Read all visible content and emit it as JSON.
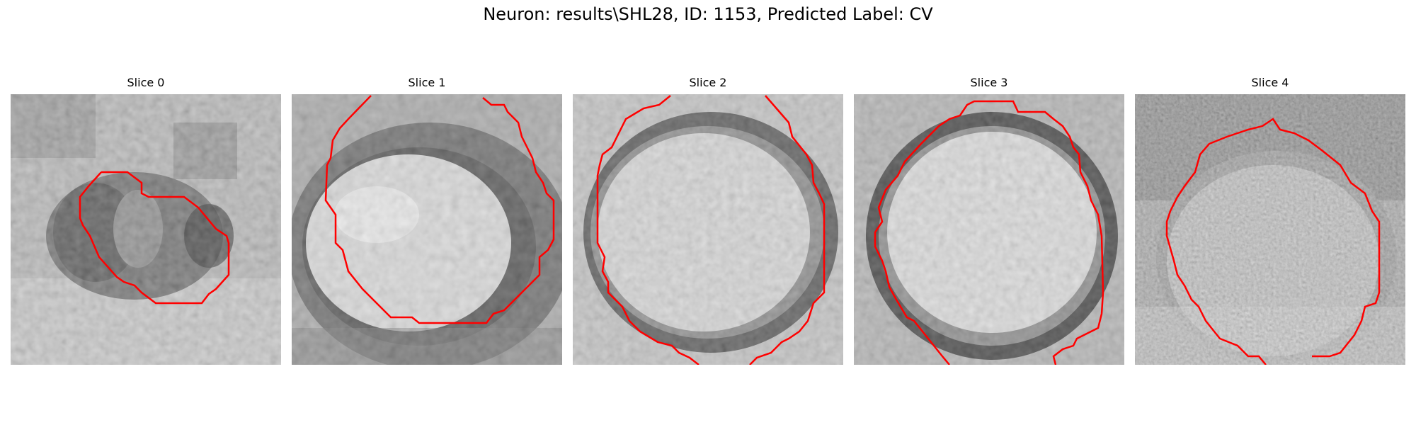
{
  "figure": {
    "title": "Neuron: results\\SHL28, ID: 1153, Predicted Label: CV"
  },
  "panels": [
    {
      "title": "Slice 0"
    },
    {
      "title": "Slice 1"
    },
    {
      "title": "Slice 2"
    },
    {
      "title": "Slice 3"
    },
    {
      "title": "Slice 4"
    }
  ],
  "colors": {
    "contour": "#ff0000",
    "background": "#ffffff"
  }
}
